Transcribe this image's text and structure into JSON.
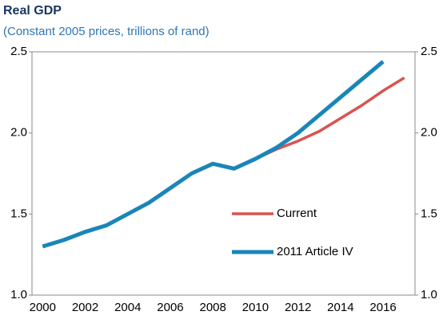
{
  "chart_data": {
    "type": "line",
    "title": "Real GDP",
    "subtitle": "(Constant 2005 prices, trillions of rand)",
    "categories": [
      2000,
      null,
      2002,
      null,
      2004,
      null,
      2006,
      null,
      2008,
      null,
      2010,
      null,
      2012,
      null,
      2014,
      null,
      2016,
      null
    ],
    "series": [
      {
        "name": "Current",
        "color": "#d9534f",
        "values": [
          1.3,
          1.34,
          1.39,
          1.43,
          1.5,
          1.57,
          1.66,
          1.75,
          1.81,
          1.78,
          1.84,
          1.9,
          1.95,
          2.01,
          2.09,
          2.17,
          2.26,
          2.34
        ]
      },
      {
        "name": "2011 Article IV",
        "color": "#1a86b8",
        "values": [
          1.3,
          1.34,
          1.39,
          1.43,
          1.5,
          1.57,
          1.66,
          1.75,
          1.81,
          1.78,
          1.84,
          1.91,
          2.0,
          2.11,
          2.22,
          2.33,
          2.44,
          null
        ]
      }
    ],
    "ylim": [
      1.0,
      2.5
    ],
    "yticks": [
      {
        "value": 1.0,
        "label": "1.0"
      },
      1.5,
      {
        "value": 2.0,
        "label": "2.0"
      },
      2.5
    ],
    "y2lim": [
      1.0,
      2.5
    ],
    "y2ticks": [
      {
        "value": 1.0,
        "label": "1.0"
      },
      1.5,
      {
        "value": 2.0,
        "label": "2.0"
      },
      2.5
    ],
    "legend": "lower right",
    "grid": false
  }
}
